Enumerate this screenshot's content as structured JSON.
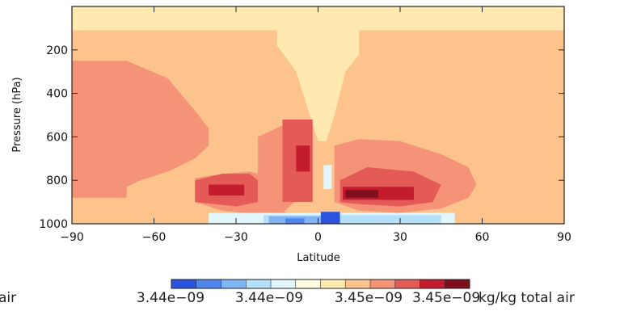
{
  "chart_data": {
    "type": "heatmap",
    "xlabel": "Latitude",
    "ylabel": "Pressure (hPa)",
    "xlim": [
      -90,
      90
    ],
    "ylim": [
      1000,
      0
    ],
    "x_ticks": [
      -90,
      -60,
      -30,
      0,
      30,
      60,
      90
    ],
    "y_ticks": [
      200,
      400,
      600,
      800,
      1000
    ],
    "x_tick_labels": [
      "−90",
      "−60",
      "−30",
      "0",
      "30",
      "60",
      "90"
    ],
    "y_tick_labels": [
      "200",
      "400",
      "600",
      "800",
      "1000"
    ],
    "levels": 12,
    "colormap": [
      "#2a53e0",
      "#4f86ee",
      "#82b4f4",
      "#b4e0fa",
      "#e2f6fb",
      "#fffde0",
      "#fee9b0",
      "#fcc48c",
      "#f59378",
      "#e45a56",
      "#c31c2c",
      "#7e0f1c"
    ],
    "colorbar": {
      "tick_labels": [
        "3.44e−09",
        "3.44e−09",
        "3.45e−09",
        "3.45e−09"
      ],
      "units": "kg/kg total air",
      "left_fragment": "air"
    },
    "regions": [
      {
        "level": 6,
        "shape": "rect",
        "lat": [
          -90,
          90
        ],
        "p": [
          0,
          1000
        ]
      },
      {
        "level": 7,
        "shape": "rect",
        "lat": [
          -90,
          90
        ],
        "p": [
          0,
          1000
        ]
      },
      {
        "level": 6,
        "shape": "poly",
        "points": [
          [
            -15,
            0
          ],
          [
            15,
            0
          ],
          [
            15,
            220
          ],
          [
            10,
            300
          ],
          [
            6,
            500
          ],
          [
            3,
            620
          ],
          [
            0,
            620
          ],
          [
            -3,
            500
          ],
          [
            -8,
            300
          ],
          [
            -15,
            180
          ]
        ]
      },
      {
        "level": 6,
        "shape": "rect",
        "lat": [
          -90,
          90
        ],
        "p": [
          0,
          110
        ]
      },
      {
        "level": 8,
        "shape": "poly",
        "points": [
          [
            -90,
            250
          ],
          [
            -70,
            250
          ],
          [
            -55,
            330
          ],
          [
            -45,
            480
          ],
          [
            -40,
            560
          ],
          [
            -40,
            640
          ],
          [
            -45,
            700
          ],
          [
            -55,
            760
          ],
          [
            -65,
            800
          ],
          [
            -75,
            860
          ],
          [
            -90,
            880
          ]
        ]
      },
      {
        "level": 8,
        "shape": "rect",
        "lat": [
          -90,
          -70
        ],
        "p": [
          300,
          880
        ]
      },
      {
        "level": 8,
        "shape": "poly",
        "points": [
          [
            -45,
            790
          ],
          [
            -35,
            770
          ],
          [
            -25,
            760
          ],
          [
            -18,
            780
          ],
          [
            -18,
            900
          ],
          [
            -10,
            960
          ],
          [
            -20,
            960
          ],
          [
            -35,
            940
          ],
          [
            -45,
            900
          ]
        ]
      },
      {
        "level": 8,
        "shape": "poly",
        "points": [
          [
            -22,
            600
          ],
          [
            -10,
            530
          ],
          [
            -2,
            540
          ],
          [
            -2,
            820
          ],
          [
            -12,
            940
          ],
          [
            -22,
            930
          ]
        ]
      },
      {
        "level": 9,
        "shape": "rect",
        "lat": [
          -13,
          -2
        ],
        "p": [
          520,
          900
        ]
      },
      {
        "level": 9,
        "shape": "poly",
        "points": [
          [
            -45,
            800
          ],
          [
            -35,
            770
          ],
          [
            -25,
            770
          ],
          [
            -22,
            800
          ],
          [
            -22,
            900
          ],
          [
            -30,
            920
          ],
          [
            -45,
            900
          ]
        ]
      },
      {
        "level": 10,
        "shape": "rect",
        "lat": [
          -8,
          -3
        ],
        "p": [
          640,
          760
        ]
      },
      {
        "level": 10,
        "shape": "rect",
        "lat": [
          -40,
          -27
        ],
        "p": [
          820,
          870
        ]
      },
      {
        "level": 8,
        "shape": "poly",
        "points": [
          [
            6,
            640
          ],
          [
            15,
            610
          ],
          [
            30,
            620
          ],
          [
            45,
            680
          ],
          [
            55,
            740
          ],
          [
            58,
            820
          ],
          [
            55,
            880
          ],
          [
            45,
            930
          ],
          [
            30,
            950
          ],
          [
            15,
            940
          ],
          [
            6,
            900
          ]
        ]
      },
      {
        "level": 9,
        "shape": "poly",
        "points": [
          [
            8,
            800
          ],
          [
            18,
            740
          ],
          [
            35,
            760
          ],
          [
            45,
            820
          ],
          [
            42,
            900
          ],
          [
            30,
            920
          ],
          [
            15,
            910
          ],
          [
            8,
            900
          ]
        ]
      },
      {
        "level": 10,
        "shape": "rect",
        "lat": [
          9,
          35
        ],
        "p": [
          830,
          890
        ]
      },
      {
        "level": 11,
        "shape": "rect",
        "lat": [
          10,
          22
        ],
        "p": [
          845,
          880
        ]
      },
      {
        "level": 4,
        "shape": "rect",
        "lat": [
          -40,
          50
        ],
        "p": [
          950,
          1000
        ]
      },
      {
        "level": 3,
        "shape": "rect",
        "lat": [
          -20,
          45
        ],
        "p": [
          960,
          1000
        ]
      },
      {
        "level": 2,
        "shape": "rect",
        "lat": [
          -18,
          2
        ],
        "p": [
          965,
          1000
        ]
      },
      {
        "level": 1,
        "shape": "rect",
        "lat": [
          -12,
          -5
        ],
        "p": [
          975,
          1000
        ]
      },
      {
        "level": 0,
        "shape": "rect",
        "lat": [
          1,
          8
        ],
        "p": [
          945,
          1000
        ]
      },
      {
        "level": 4,
        "shape": "rect",
        "lat": [
          2,
          5
        ],
        "p": [
          730,
          840
        ]
      },
      {
        "level": 7,
        "shape": "rect",
        "lat": [
          56,
          90
        ],
        "p": [
          280,
          700
        ]
      }
    ]
  }
}
